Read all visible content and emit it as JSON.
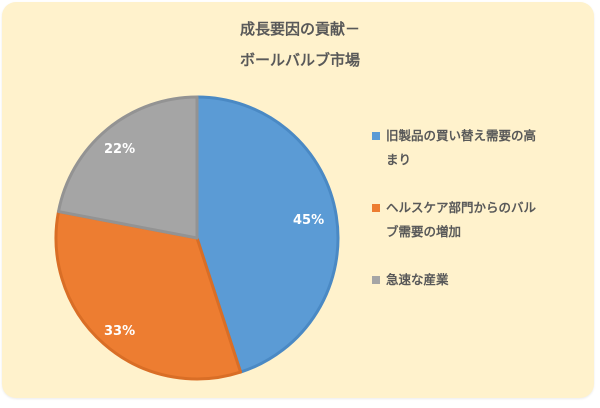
{
  "title": {
    "line1": "成長要因の貢献－",
    "line2": "ボールバルブ市場"
  },
  "legend": {
    "items": [
      {
        "label": "旧製品の買い替え需要の高まり",
        "line1": "旧製品の買い替え需要の高",
        "line2": "まり",
        "color": "#5b9bd5"
      },
      {
        "label": "ヘルスケア部門からのバルブ需要の増加",
        "line1": "ヘルスケア部門からのバル",
        "line2": "ブ需要の増加",
        "color": "#ed7d31"
      },
      {
        "label": "急速な産業",
        "line1": "急速な産業",
        "line2": "",
        "color": "#a5a5a5"
      }
    ]
  },
  "labels": {
    "slice0": "45%",
    "slice1": "33%",
    "slice2": "22%"
  },
  "chart_data": {
    "type": "pie",
    "title": "成長要因の貢献－ボールバルブ市場",
    "categories": [
      "旧製品の買い替え需要の高まり",
      "ヘルスケア部門からのバルブ需要の増加",
      "急速な産業"
    ],
    "values": [
      45,
      33,
      22
    ],
    "unit": "%",
    "colors": [
      "#5b9bd5",
      "#ed7d31",
      "#a5a5a5"
    ],
    "start_angle_deg": 0,
    "direction": "clockwise",
    "data_labels": [
      "45%",
      "33%",
      "22%"
    ],
    "legend_position": "right"
  }
}
